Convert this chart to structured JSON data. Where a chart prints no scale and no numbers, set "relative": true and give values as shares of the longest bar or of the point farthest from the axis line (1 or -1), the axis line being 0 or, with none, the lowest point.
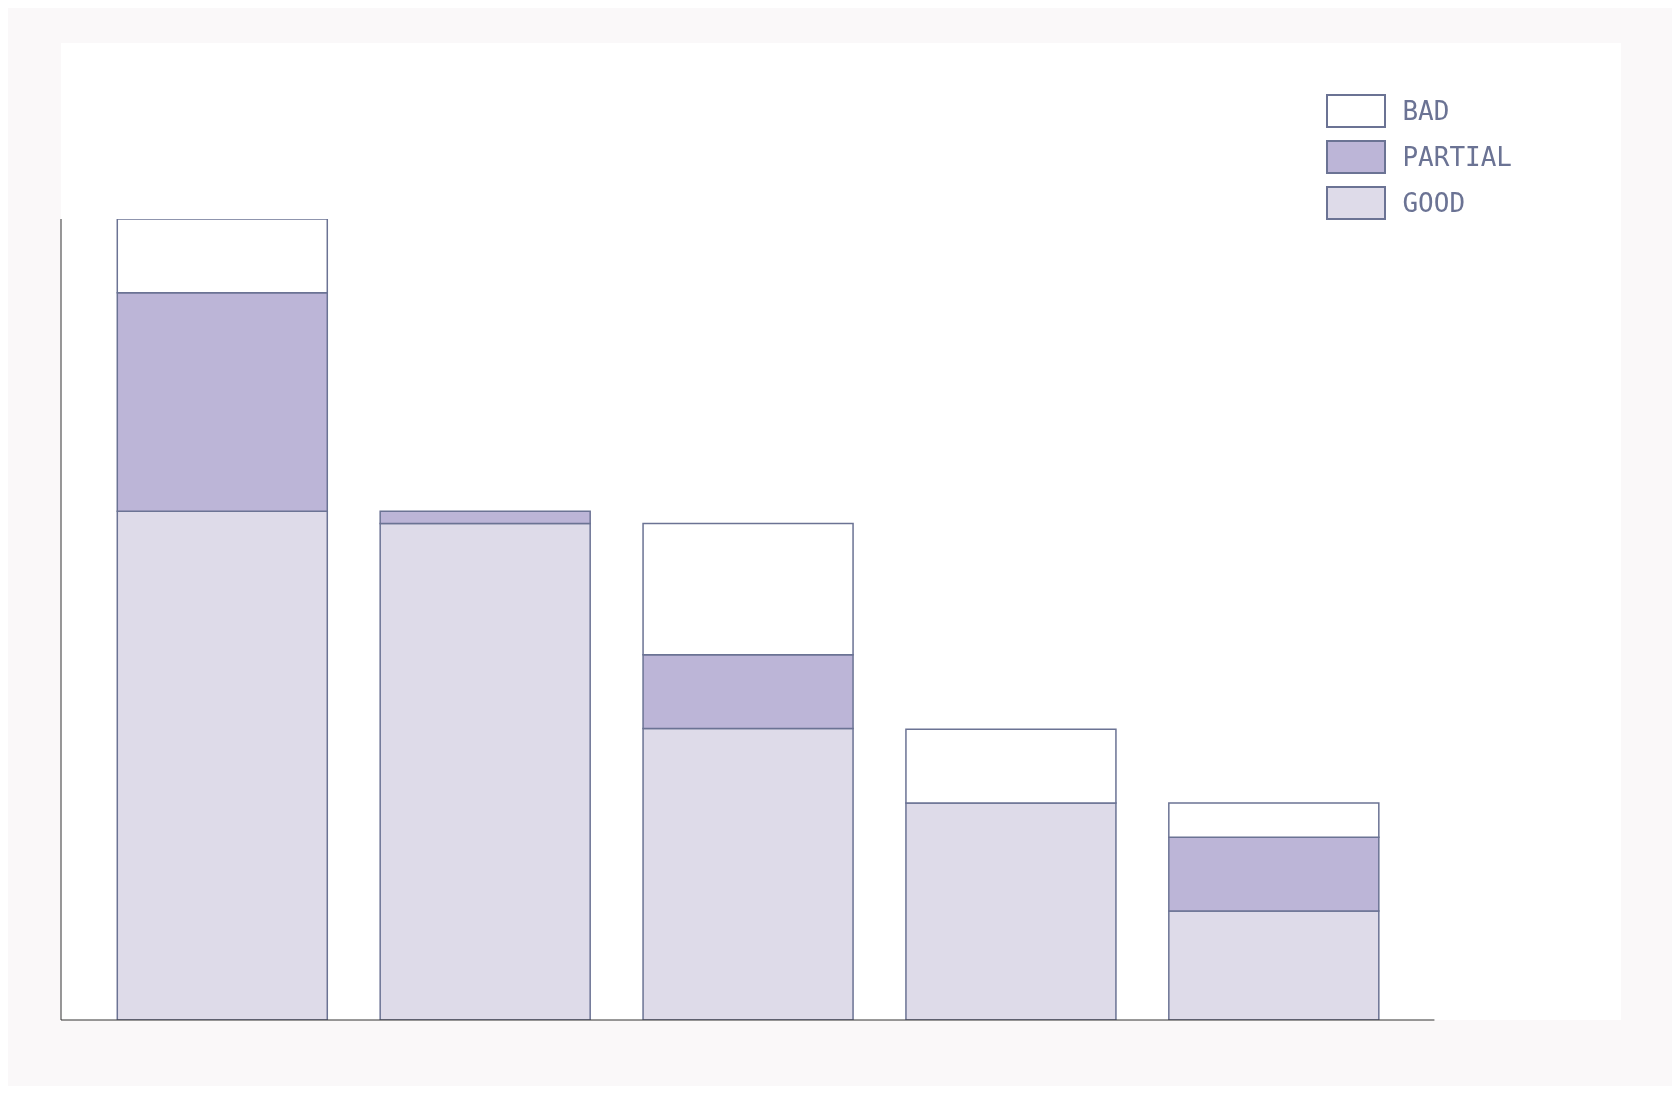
{
  "chart_data": {
    "type": "bar",
    "stacked": true,
    "relative": true,
    "legend": "top right",
    "categories": [
      null,
      null,
      null,
      null,
      null
    ],
    "series": [
      {
        "name": "GOOD",
        "color": "#dedbe9",
        "values": [
          0.635,
          0.62,
          0.364,
          0.271,
          0.136
        ]
      },
      {
        "name": "PARTIAL",
        "color": "#bcb5d7",
        "values": [
          0.273,
          0.015,
          0.092,
          0,
          0.092
        ]
      },
      {
        "name": "BAD",
        "color": "#ffffff",
        "values": [
          0.092,
          0,
          0.164,
          0.092,
          0.043
        ]
      }
    ]
  }
}
